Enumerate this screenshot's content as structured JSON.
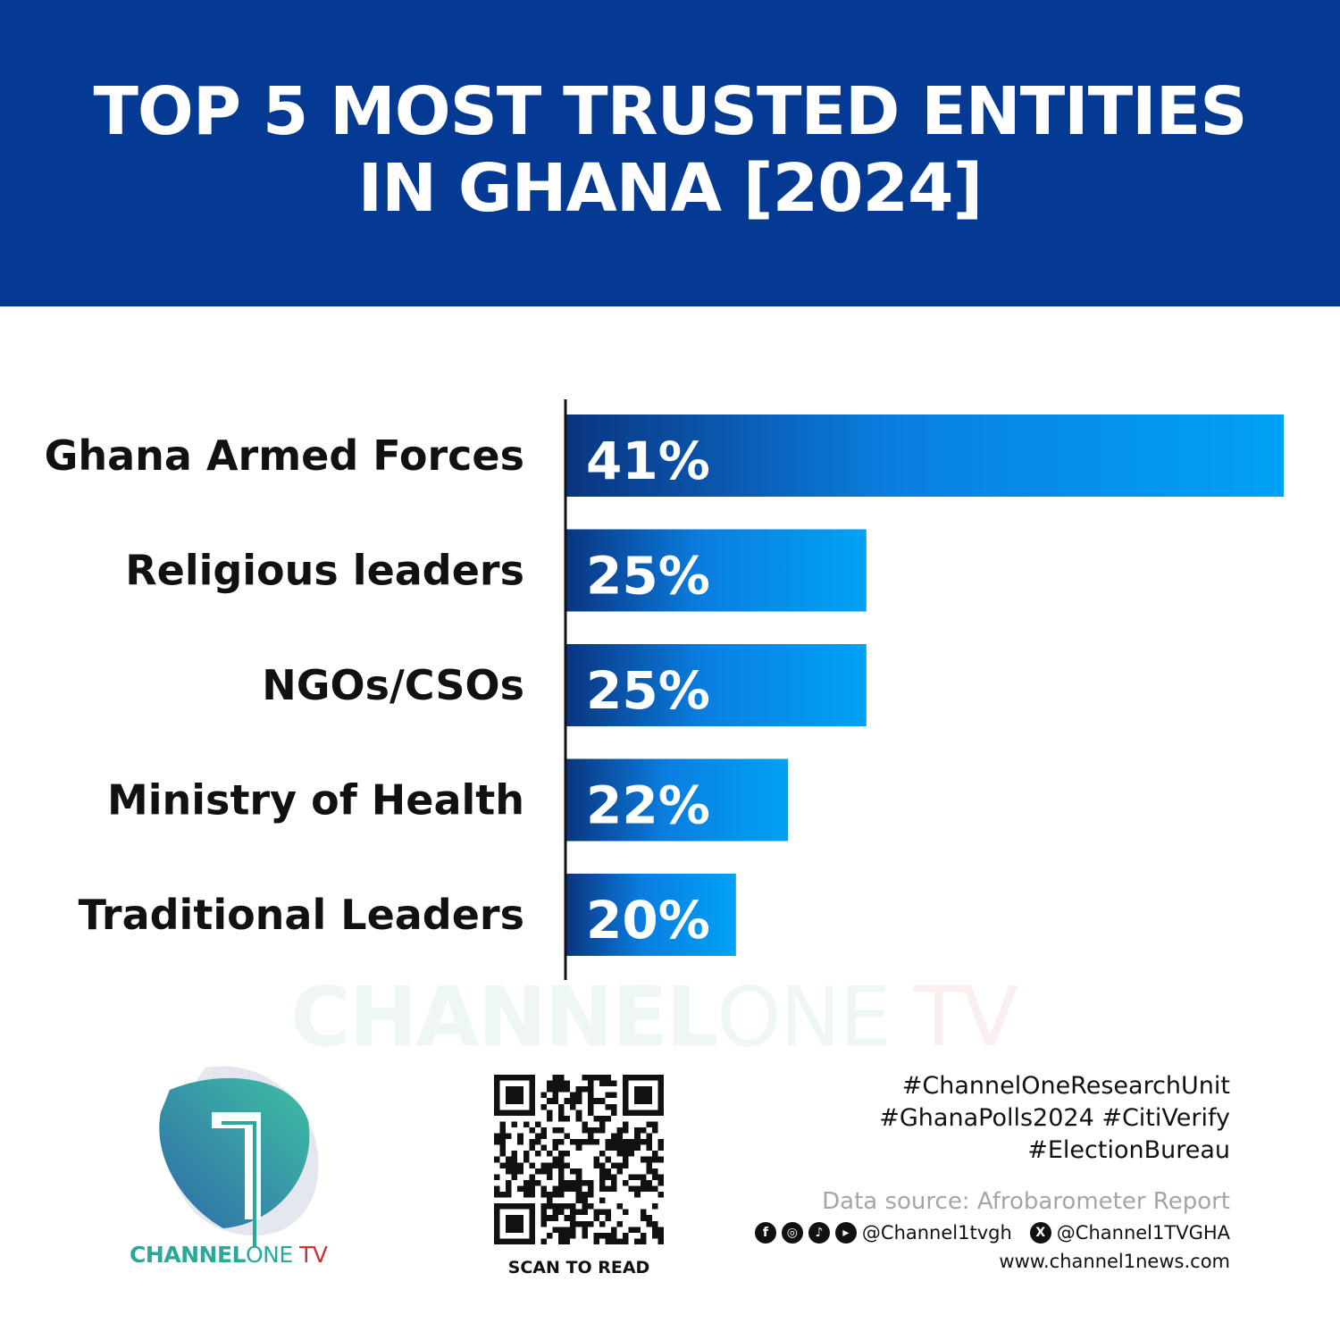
{
  "header": {
    "title_line1": "TOP 5 MOST TRUSTED ENTITIES",
    "title_line2": "IN GHANA [2024]",
    "background": "#043a94"
  },
  "chart_data": {
    "type": "bar",
    "orientation": "horizontal",
    "title": "TOP 5 MOST TRUSTED ENTITIES IN GHANA [2024]",
    "categories": [
      "Ghana Armed Forces",
      "Religious leaders",
      "NGOs/CSOs",
      "Ministry of Health",
      "Traditional Leaders"
    ],
    "values": [
      41,
      25,
      25,
      22,
      20
    ],
    "value_labels": [
      "41%",
      "25%",
      "25%",
      "22%",
      "20%"
    ],
    "xlim": [
      13.5,
      41
    ],
    "grid": false,
    "bar_gradient": [
      "#0a3580",
      "#00a2f5"
    ]
  },
  "watermark": {
    "part1": "CHANNEL",
    "part2": "ONE",
    "part3": " TV"
  },
  "logo": {
    "part1": "CHANNEL",
    "part2": "ONE",
    "part3": " TV"
  },
  "qr": {
    "caption": "SCAN TO READ"
  },
  "footer": {
    "hashtags": [
      "#ChannelOneResearchUnit",
      "#GhanaPolls2024 #CitiVerify",
      "#ElectionBureau"
    ],
    "source": "Data source: Afrobarometer Report",
    "social_handle": "@Channel1tvgh",
    "x_handle": "@Channel1TVGHA",
    "website": "www.channel1news.com",
    "icons": [
      "facebook-icon",
      "instagram-icon",
      "tiktok-icon",
      "youtube-icon",
      "x-icon"
    ]
  }
}
